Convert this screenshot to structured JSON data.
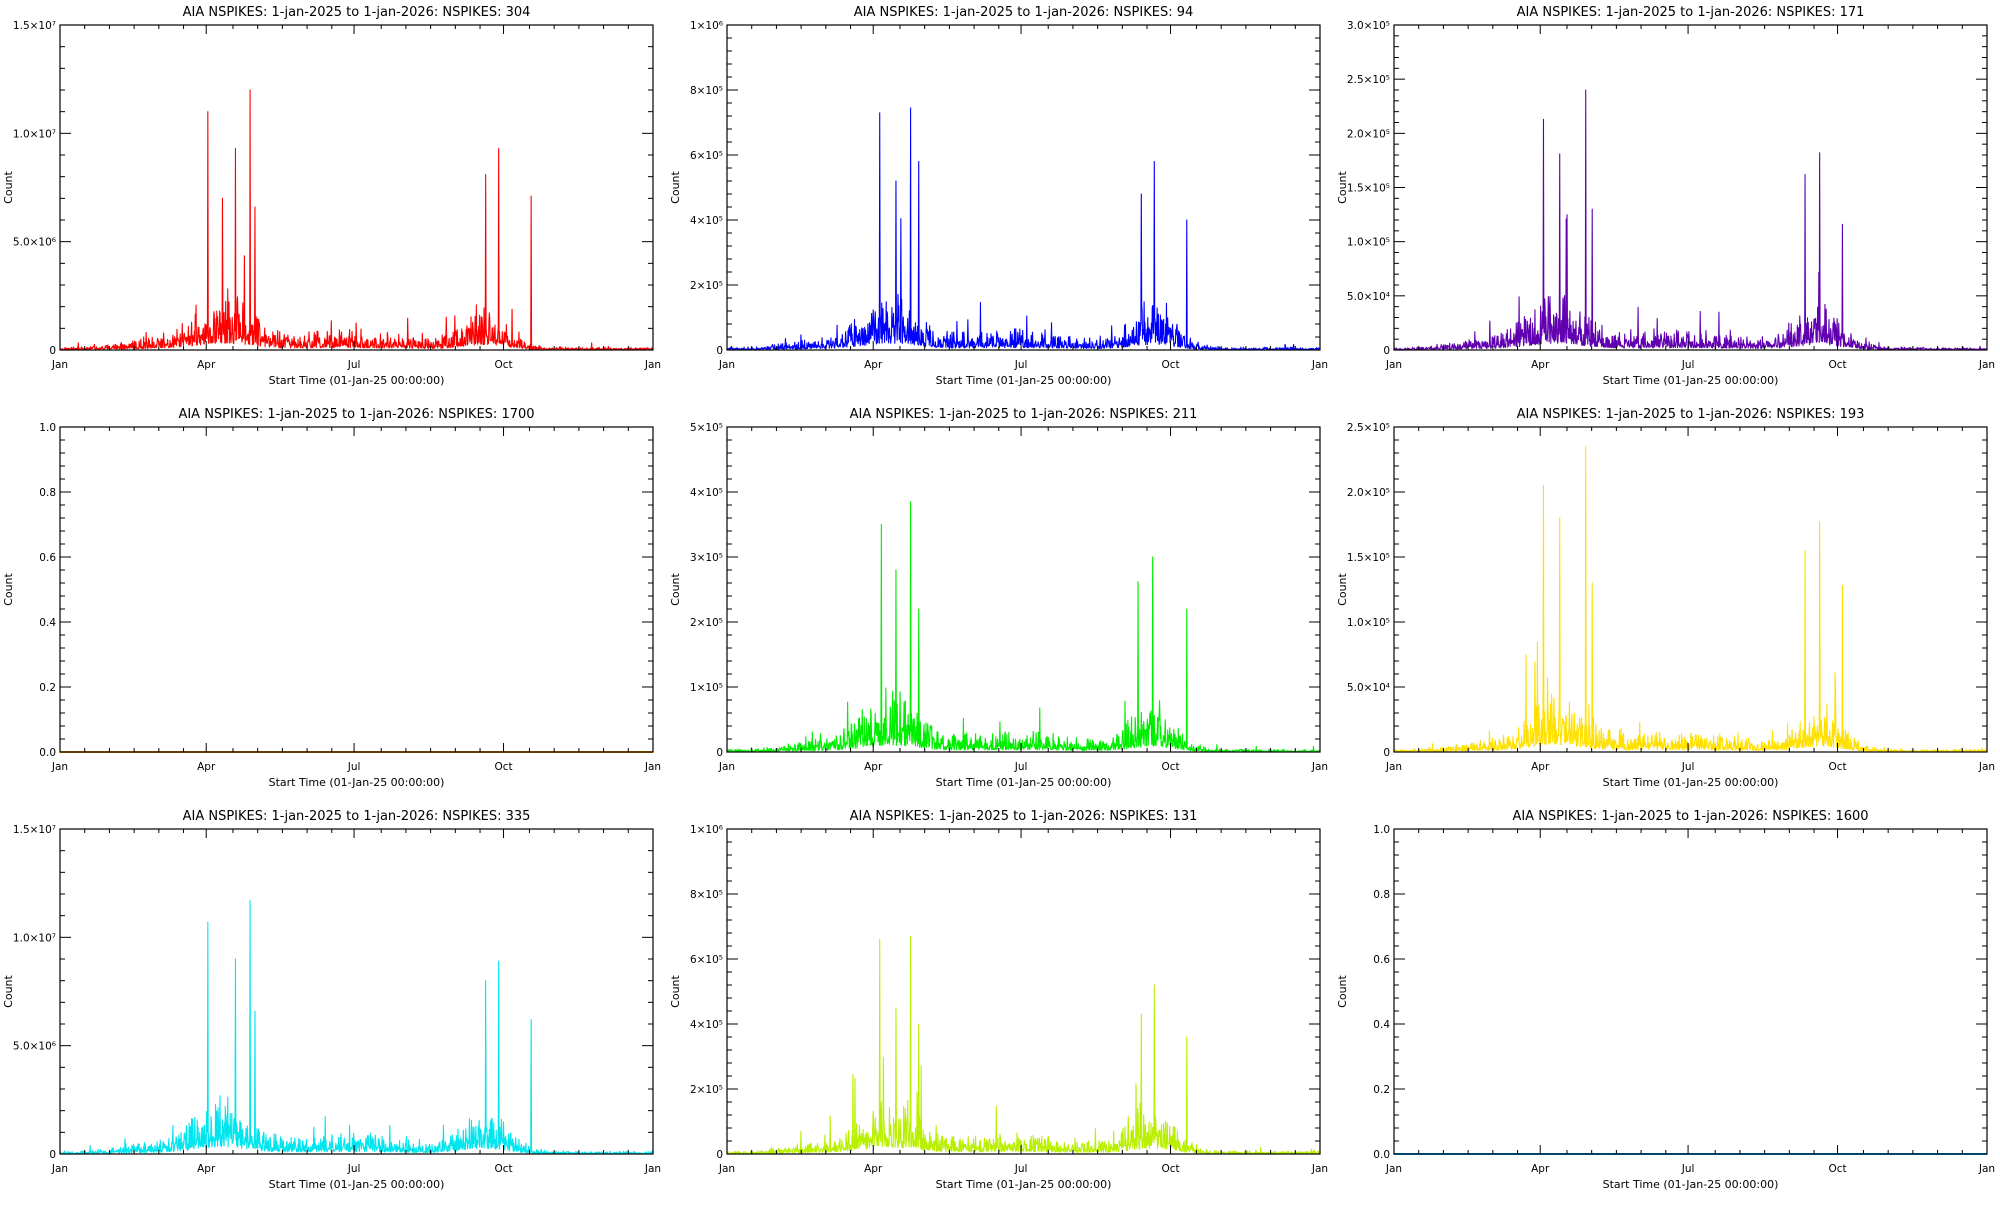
{
  "chart_data": [
    {
      "type": "line",
      "title": "AIA NSPIKES: 1-jan-2025 to 1-jan-2026: NSPIKES: 304",
      "xlabel": "Start Time (01-Jan-25 00:00:00)",
      "ylabel": "Count",
      "xticks": [
        "Jan",
        "Apr",
        "Jul",
        "Oct",
        "Jan"
      ],
      "yticks": [
        "0",
        "5.0×10⁶",
        "1.0×10⁷",
        "1.5×10⁷"
      ],
      "ytick_values": [
        0,
        5000000,
        10000000,
        15000000
      ],
      "ylim": [
        0,
        15000000
      ],
      "color": "#ff0000",
      "empty": false,
      "peaks": [
        [
          91,
          11000000
        ],
        [
          100,
          7000000
        ],
        [
          108,
          9300000
        ],
        [
          117,
          12000000
        ],
        [
          120,
          6600000
        ],
        [
          262,
          8100000
        ],
        [
          270,
          9300000
        ],
        [
          290,
          7100000
        ]
      ]
    },
    {
      "type": "line",
      "title": "AIA NSPIKES: 1-jan-2025 to 1-jan-2026: NSPIKES: 94",
      "xlabel": "Start Time (01-Jan-25 00:00:00)",
      "ylabel": "Count",
      "xticks": [
        "Jan",
        "Apr",
        "Jul",
        "Oct",
        "Jan"
      ],
      "yticks": [
        "0",
        "2×10⁵",
        "4×10⁵",
        "6×10⁵",
        "8×10⁵",
        "1×10⁶"
      ],
      "ytick_values": [
        0,
        200000,
        400000,
        600000,
        800000,
        1000000
      ],
      "ylim": [
        0,
        1000000
      ],
      "color": "#0000ff",
      "empty": false,
      "peaks": [
        [
          94,
          730000
        ],
        [
          104,
          520000
        ],
        [
          113,
          745000
        ],
        [
          118,
          580000
        ],
        [
          255,
          480000
        ],
        [
          263,
          580000
        ],
        [
          283,
          400000
        ]
      ]
    },
    {
      "type": "line",
      "title": "AIA NSPIKES: 1-jan-2025 to 1-jan-2026: NSPIKES: 171",
      "xlabel": "Start Time (01-Jan-25 00:00:00)",
      "ylabel": "Count",
      "xticks": [
        "Jan",
        "Apr",
        "Jul",
        "Oct",
        "Jan"
      ],
      "yticks": [
        "0",
        "5.0×10⁴",
        "1.0×10⁵",
        "1.5×10⁵",
        "2.0×10⁵",
        "2.5×10⁵",
        "3.0×10⁵"
      ],
      "ytick_values": [
        0,
        50000,
        100000,
        150000,
        200000,
        250000,
        300000
      ],
      "ylim": [
        0,
        300000
      ],
      "color": "#6000b0",
      "empty": false,
      "peaks": [
        [
          92,
          213000
        ],
        [
          102,
          181000
        ],
        [
          118,
          240000
        ],
        [
          122,
          130000
        ],
        [
          253,
          162000
        ],
        [
          262,
          182000
        ],
        [
          276,
          116000
        ]
      ]
    },
    {
      "type": "line",
      "title": "AIA NSPIKES: 1-jan-2025 to 1-jan-2026: NSPIKES: 1700",
      "xlabel": "Start Time (01-Jan-25 00:00:00)",
      "ylabel": "Count",
      "xticks": [
        "Jan",
        "Apr",
        "Jul",
        "Oct",
        "Jan"
      ],
      "yticks": [
        "0.0",
        "0.2",
        "0.4",
        "0.6",
        "0.8",
        "1.0"
      ],
      "ytick_values": [
        0,
        0.2,
        0.4,
        0.6,
        0.8,
        1.0
      ],
      "ylim": [
        0,
        1
      ],
      "color": "#ff9900",
      "empty": true,
      "peaks": []
    },
    {
      "type": "line",
      "title": "AIA NSPIKES: 1-jan-2025 to 1-jan-2026: NSPIKES: 211",
      "xlabel": "Start Time (01-Jan-25 00:00:00)",
      "ylabel": "Count",
      "xticks": [
        "Jan",
        "Apr",
        "Jul",
        "Oct",
        "Jan"
      ],
      "yticks": [
        "0",
        "1×10⁵",
        "2×10⁵",
        "3×10⁵",
        "4×10⁵",
        "5×10⁵"
      ],
      "ytick_values": [
        0,
        100000,
        200000,
        300000,
        400000,
        500000
      ],
      "ylim": [
        0,
        500000
      ],
      "color": "#00ee00",
      "empty": false,
      "peaks": [
        [
          95,
          350000
        ],
        [
          104,
          280000
        ],
        [
          113,
          385000
        ],
        [
          118,
          220000
        ],
        [
          253,
          262000
        ],
        [
          262,
          300000
        ],
        [
          283,
          220000
        ]
      ]
    },
    {
      "type": "line",
      "title": "AIA NSPIKES: 1-jan-2025 to 1-jan-2026: NSPIKES: 193",
      "xlabel": "Start Time (01-Jan-25 00:00:00)",
      "ylabel": "Count",
      "xticks": [
        "Jan",
        "Apr",
        "Jul",
        "Oct",
        "Jan"
      ],
      "yticks": [
        "0",
        "5.0×10⁴",
        "1.0×10⁵",
        "1.5×10⁵",
        "2.0×10⁵",
        "2.5×10⁵"
      ],
      "ytick_values": [
        0,
        50000,
        100000,
        150000,
        200000,
        250000
      ],
      "ylim": [
        0,
        250000
      ],
      "color": "#ffe000",
      "empty": false,
      "peaks": [
        [
          92,
          205000
        ],
        [
          102,
          180000
        ],
        [
          118,
          235000
        ],
        [
          122,
          130000
        ],
        [
          253,
          155000
        ],
        [
          262,
          177000
        ],
        [
          276,
          128000
        ]
      ]
    },
    {
      "type": "line",
      "title": "AIA NSPIKES: 1-jan-2025 to 1-jan-2026: NSPIKES: 335",
      "xlabel": "Start Time (01-Jan-25 00:00:00)",
      "ylabel": "Count",
      "xticks": [
        "Jan",
        "Apr",
        "Jul",
        "Oct",
        "Jan"
      ],
      "yticks": [
        "0",
        "5.0×10⁶",
        "1.0×10⁷",
        "1.5×10⁷"
      ],
      "ytick_values": [
        0,
        5000000,
        10000000,
        15000000
      ],
      "ylim": [
        0,
        15000000
      ],
      "color": "#00e5ee",
      "empty": false,
      "peaks": [
        [
          91,
          10700000
        ],
        [
          108,
          9000000
        ],
        [
          117,
          11700000
        ],
        [
          120,
          6600000
        ],
        [
          262,
          8000000
        ],
        [
          270,
          8900000
        ],
        [
          290,
          6200000
        ]
      ]
    },
    {
      "type": "line",
      "title": "AIA NSPIKES: 1-jan-2025 to 1-jan-2026: NSPIKES: 131",
      "xlabel": "Start Time (01-Jan-25 00:00:00)",
      "ylabel": "Count",
      "xticks": [
        "Jan",
        "Apr",
        "Jul",
        "Oct",
        "Jan"
      ],
      "yticks": [
        "0",
        "2×10⁵",
        "4×10⁵",
        "6×10⁵",
        "8×10⁵",
        "1×10⁶"
      ],
      "ytick_values": [
        0,
        200000,
        400000,
        600000,
        800000,
        1000000
      ],
      "ylim": [
        0,
        1000000
      ],
      "color": "#b8f000",
      "empty": false,
      "peaks": [
        [
          94,
          660000
        ],
        [
          104,
          450000
        ],
        [
          113,
          670000
        ],
        [
          118,
          400000
        ],
        [
          255,
          430000
        ],
        [
          263,
          520000
        ],
        [
          283,
          360000
        ]
      ]
    },
    {
      "type": "line",
      "title": "AIA NSPIKES: 1-jan-2025 to 1-jan-2026: NSPIKES: 1600",
      "xlabel": "Start Time (01-Jan-25 00:00:00)",
      "ylabel": "Count",
      "xticks": [
        "Jan",
        "Apr",
        "Jul",
        "Oct",
        "Jan"
      ],
      "yticks": [
        "0.0",
        "0.2",
        "0.4",
        "0.6",
        "0.8",
        "1.0"
      ],
      "ytick_values": [
        0,
        0.2,
        0.4,
        0.6,
        0.8,
        1.0
      ],
      "ylim": [
        0,
        1
      ],
      "color": "#00aaff",
      "empty": true,
      "peaks": []
    }
  ]
}
